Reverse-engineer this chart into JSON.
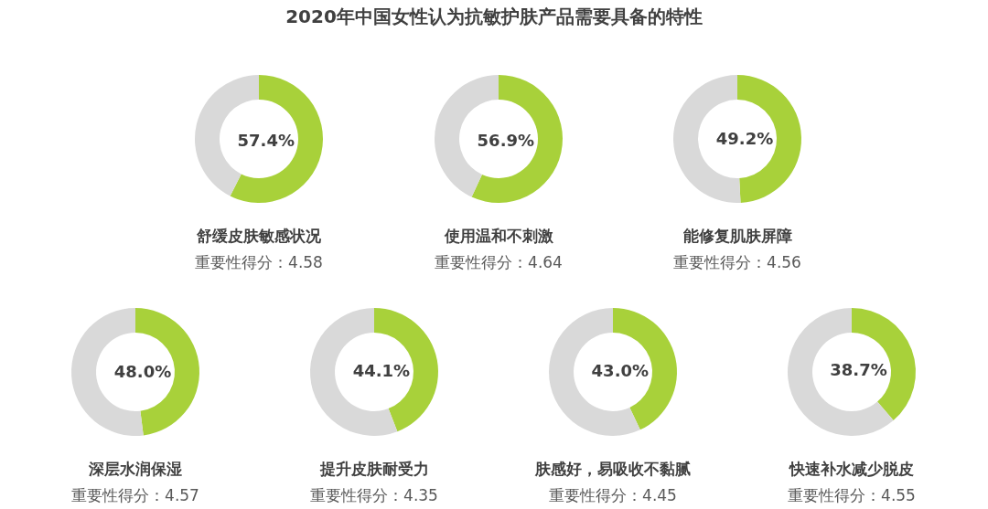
{
  "chart_data": [
    {
      "type": "other",
      "title": "2020年中国女性认为抗敏护肤产品需要具备的特性"
    },
    {
      "type": "donut",
      "title": "舒缓皮肤敏感状况",
      "subtitle": "重要性得分：4.58",
      "categories": [
        null,
        null
      ],
      "values": [
        57.4,
        42.6
      ],
      "colors": [
        "#a8d13a",
        "#d9d9d9"
      ],
      "value_labels": [
        "57.4%",
        null
      ]
    },
    {
      "type": "donut",
      "title": "使用温和不刺激",
      "subtitle": "重要性得分：4.64",
      "categories": [
        null,
        null
      ],
      "values": [
        56.9,
        43.1
      ],
      "colors": [
        "#a8d13a",
        "#d9d9d9"
      ],
      "value_labels": [
        "56.9%",
        null
      ]
    },
    {
      "type": "donut",
      "title": "能修复肌肤屏障",
      "subtitle": "重要性得分：4.56",
      "categories": [
        null,
        null
      ],
      "values": [
        49.2,
        50.8
      ],
      "colors": [
        "#a8d13a",
        "#d9d9d9"
      ],
      "value_labels": [
        "49.2%",
        null
      ]
    },
    {
      "type": "donut",
      "title": "深层水润保湿",
      "subtitle": "重要性得分：4.57",
      "categories": [
        null,
        null
      ],
      "values": [
        48.0,
        52.0
      ],
      "colors": [
        "#a8d13a",
        "#d9d9d9"
      ],
      "value_labels": [
        "48.0%",
        null
      ]
    },
    {
      "type": "donut",
      "title": "提升皮肤耐受力",
      "subtitle": "重要性得分：4.35",
      "categories": [
        null,
        null
      ],
      "values": [
        44.1,
        55.9
      ],
      "colors": [
        "#a8d13a",
        "#d9d9d9"
      ],
      "value_labels": [
        "44.1%",
        null
      ]
    },
    {
      "type": "donut",
      "title": "肤感好，易吸收不黏腻",
      "subtitle": "重要性得分：4.45",
      "categories": [
        null,
        null
      ],
      "values": [
        43.0,
        57.0
      ],
      "colors": [
        "#a8d13a",
        "#d9d9d9"
      ],
      "value_labels": [
        "43.0%",
        null
      ]
    },
    {
      "type": "donut",
      "title": "快速补水减少脱皮",
      "subtitle": "重要性得分：4.55",
      "categories": [
        null,
        null
      ],
      "values": [
        38.7,
        61.3
      ],
      "colors": [
        "#a8d13a",
        "#d9d9d9"
      ],
      "value_labels": [
        "38.7%",
        null
      ]
    }
  ]
}
